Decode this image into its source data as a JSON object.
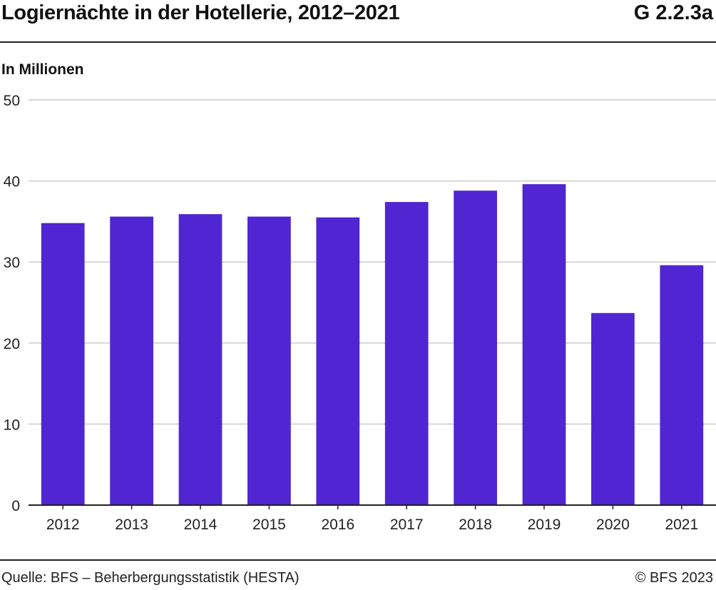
{
  "header": {
    "title": "Logiernächte in der Hotellerie, 2012–2021",
    "code": "G 2.2.3a",
    "unit": "In Millionen"
  },
  "footer": {
    "source": "Quelle: BFS – Beherbergungsstatistik (HESTA)",
    "copyright": "© BFS 2023"
  },
  "chart_data": {
    "type": "bar",
    "categories": [
      "2012",
      "2013",
      "2014",
      "2015",
      "2016",
      "2017",
      "2018",
      "2019",
      "2020",
      "2021"
    ],
    "values": [
      34.8,
      35.6,
      35.9,
      35.6,
      35.5,
      37.4,
      38.8,
      39.6,
      23.7,
      29.6
    ],
    "ylabel": "In Millionen",
    "ylim": [
      0,
      50
    ],
    "yticks": [
      0,
      10,
      20,
      30,
      40,
      50
    ],
    "grid": true,
    "bar_color": "#4f26d2",
    "grid_color": "#cccccc"
  }
}
